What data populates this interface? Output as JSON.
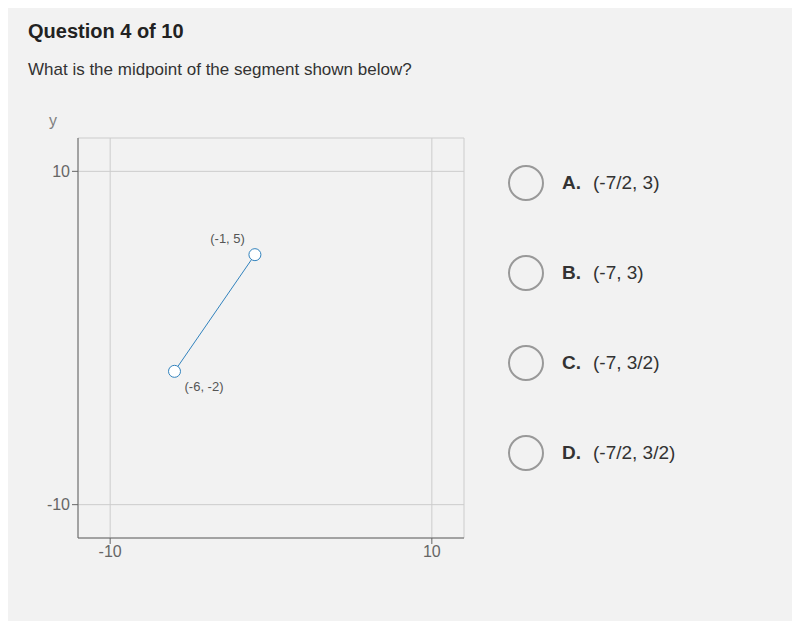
{
  "chart_data": {
    "type": "line",
    "title": "Question 4 of 10",
    "subtitle": "What is the midpoint of the segment shown below?",
    "ylabel": "y",
    "x": [
      -6,
      -1
    ],
    "values": [
      -2,
      5
    ],
    "marker": "circle",
    "xlim": [
      -12,
      12
    ],
    "ylim": [
      -12,
      12
    ],
    "xticks": [
      -10,
      10
    ],
    "yticks": [
      -10,
      10
    ],
    "grid": true,
    "annotations": [
      {
        "x": -6,
        "y": -2,
        "text": "(-6, -2)"
      },
      {
        "x": -1,
        "y": 5,
        "text": "(-1, 5)"
      },
      {
        "label": "A.",
        "text": "(-7/2, 3)"
      },
      {
        "label": "B.",
        "text": "(-7, 3)"
      },
      {
        "label": "C.",
        "text": "(-7, 3/2)"
      },
      {
        "label": "D.",
        "text": "(-7/2, 3/2)"
      }
    ]
  }
}
